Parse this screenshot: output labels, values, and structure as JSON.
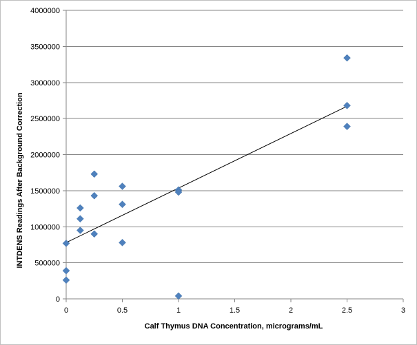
{
  "chart_data": {
    "type": "scatter",
    "title": "",
    "xlabel": "Calf Thymus  DNA Concentration, micrograms/mL",
    "ylabel": "INTDENS  Readings  After Background  Correction",
    "xlim": [
      0,
      3
    ],
    "ylim": [
      0,
      4000000
    ],
    "x_ticks": [
      0,
      0.5,
      1,
      1.5,
      2,
      2.5,
      3
    ],
    "x_tick_labels": [
      "0",
      "0.5",
      "1",
      "1.5",
      "2",
      "2.5",
      "3"
    ],
    "y_ticks": [
      0,
      500000,
      1000000,
      1500000,
      2000000,
      2500000,
      3000000,
      3500000,
      4000000
    ],
    "y_tick_labels": [
      "0",
      "500000",
      "1000000",
      "1500000",
      "2000000",
      "2500000",
      "3000000",
      "3500000",
      "4000000"
    ],
    "grid": {
      "horizontal": true,
      "vertical": false
    },
    "marker_color": "#4f81bd",
    "trendline_color": "#000000",
    "points": [
      {
        "x": 0,
        "y": 770000
      },
      {
        "x": 0,
        "y": 390000
      },
      {
        "x": 0,
        "y": 260000
      },
      {
        "x": 0.125,
        "y": 1260000
      },
      {
        "x": 0.125,
        "y": 1110000
      },
      {
        "x": 0.125,
        "y": 950000
      },
      {
        "x": 0.25,
        "y": 1730000
      },
      {
        "x": 0.25,
        "y": 1430000
      },
      {
        "x": 0.25,
        "y": 900000
      },
      {
        "x": 0.5,
        "y": 1560000
      },
      {
        "x": 0.5,
        "y": 1310000
      },
      {
        "x": 0.5,
        "y": 780000
      },
      {
        "x": 1,
        "y": 1510000
      },
      {
        "x": 1,
        "y": 1480000
      },
      {
        "x": 1,
        "y": 40000
      },
      {
        "x": 2.5,
        "y": 3340000
      },
      {
        "x": 2.5,
        "y": 2680000
      },
      {
        "x": 2.5,
        "y": 2390000
      }
    ],
    "trendline": {
      "type": "linear",
      "from": {
        "x": 0,
        "y": 780000
      },
      "to": {
        "x": 2.5,
        "y": 2670000
      }
    }
  }
}
